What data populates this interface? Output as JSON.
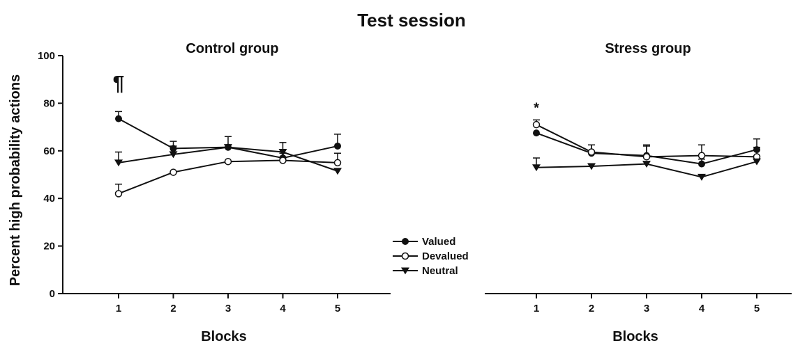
{
  "figure": {
    "title": "Test session"
  },
  "chart_data": [
    {
      "type": "line",
      "title": "Control group",
      "xlabel": "Blocks",
      "ylabel": "Percent high probability actions",
      "x": [
        1,
        2,
        3,
        4,
        5
      ],
      "ylim": [
        0,
        100
      ],
      "yticks": [
        0,
        20,
        40,
        60,
        80,
        100
      ],
      "series": [
        {
          "name": "Valued",
          "marker": "filled-circle",
          "values": [
            73.5,
            61,
            61.5,
            57,
            62
          ],
          "errors": [
            3,
            3,
            4.5,
            2,
            5
          ]
        },
        {
          "name": "Devalued",
          "marker": "open-circle",
          "values": [
            42,
            51,
            55.5,
            56,
            55
          ],
          "errors": [
            4,
            0,
            0,
            0,
            4
          ]
        },
        {
          "name": "Neutral",
          "marker": "filled-triangle-down",
          "values": [
            55,
            58.5,
            61.5,
            59.5,
            51.5
          ],
          "errors": [
            4.5,
            3.5,
            0,
            4,
            0
          ]
        }
      ],
      "annotations": [
        {
          "text": "¶",
          "x": 1,
          "y": 89
        }
      ]
    },
    {
      "type": "line",
      "title": "Stress group",
      "xlabel": "Blocks",
      "ylabel": "",
      "x": [
        1,
        2,
        3,
        4,
        5
      ],
      "ylim": [
        0,
        100
      ],
      "series": [
        {
          "name": "Valued",
          "marker": "filled-circle",
          "values": [
            67.5,
            59,
            58,
            54.5,
            60.5
          ],
          "errors": [
            0,
            3.5,
            4.5,
            2,
            4.5
          ]
        },
        {
          "name": "Devalued",
          "marker": "open-circle",
          "values": [
            71,
            59.5,
            57.5,
            58,
            57.5
          ],
          "errors": [
            2,
            3,
            4.5,
            4.5,
            4
          ]
        },
        {
          "name": "Neutral",
          "marker": "filled-triangle-down",
          "values": [
            53,
            53.5,
            54.5,
            49,
            55.5
          ],
          "errors": [
            4,
            0,
            0,
            0,
            0
          ]
        }
      ],
      "annotations": [
        {
          "text": "*",
          "x": 1,
          "y": 78.5
        }
      ]
    }
  ],
  "legend": {
    "placement": "center-bottom",
    "items": [
      {
        "label": "Valued",
        "marker": "filled-circle"
      },
      {
        "label": "Devalued",
        "marker": "open-circle"
      },
      {
        "label": "Neutral",
        "marker": "filled-triangle-down"
      }
    ]
  }
}
